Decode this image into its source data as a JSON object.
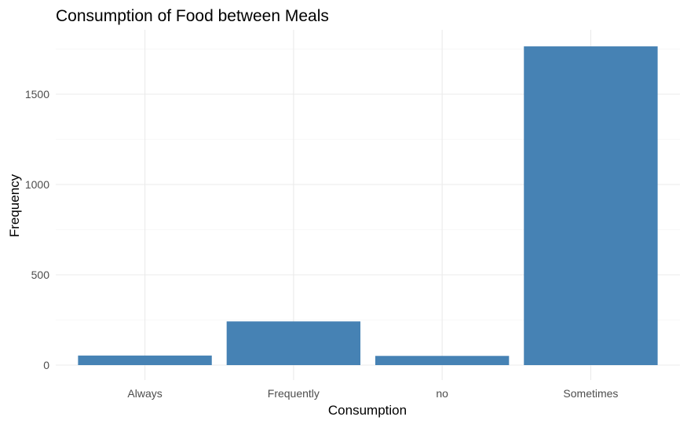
{
  "chart_data": {
    "type": "bar",
    "title": "Consumption of Food between Meals",
    "xlabel": "Consumption",
    "ylabel": "Frequency",
    "categories": [
      "Always",
      "Frequently",
      "no",
      "Sometimes"
    ],
    "values": [
      53,
      242,
      51,
      1765
    ],
    "ylim": [
      0,
      1850
    ],
    "yticks": [
      0,
      500,
      1000,
      1500
    ],
    "grid": true,
    "bar_color": "#4682b4"
  }
}
